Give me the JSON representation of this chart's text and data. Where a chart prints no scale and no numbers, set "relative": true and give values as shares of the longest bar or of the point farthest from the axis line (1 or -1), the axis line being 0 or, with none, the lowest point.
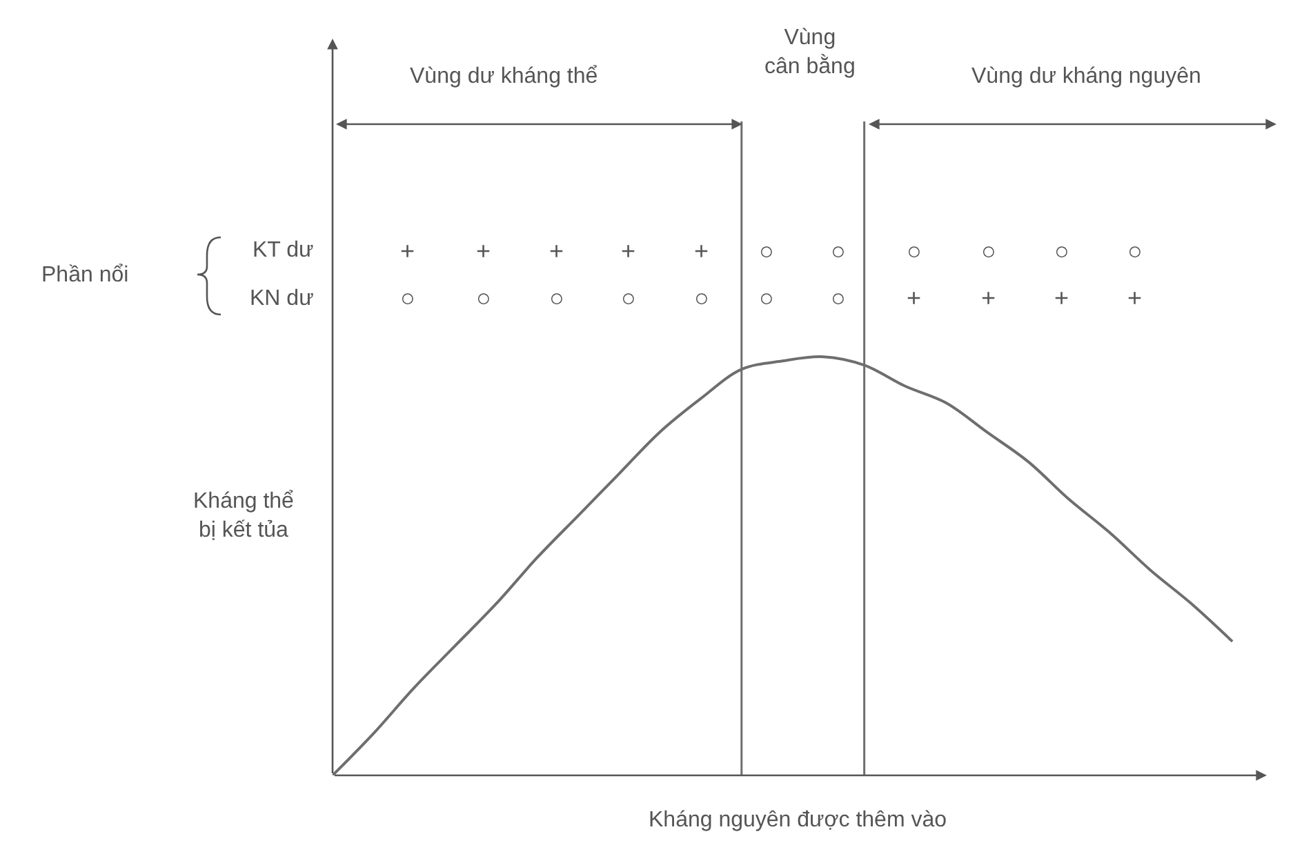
{
  "chart_data": {
    "type": "line",
    "relative": true,
    "xlabel": "Kháng nguyên được thêm vào",
    "ylabel": "Kháng thể\nbị kết tủa",
    "categories": [
      null,
      null,
      null,
      null,
      null,
      null,
      null,
      null,
      null,
      null,
      null,
      null,
      null,
      null,
      null,
      null,
      null,
      null,
      null,
      null,
      null,
      null,
      null
    ],
    "series": [
      {
        "color": "#6e6e6e",
        "values": [
          0,
          0.1,
          0.21,
          0.31,
          0.41,
          0.52,
          0.62,
          0.72,
          0.82,
          0.9,
          0.97,
          0.99,
          1,
          0.98,
          0.93,
          0.89,
          0.82,
          0.75,
          0.66,
          0.58,
          0.49,
          0.41,
          0.32
        ]
      }
    ],
    "annotations": [
      "Vùng dư kháng thể",
      "Vùng\ncân bằng",
      "Vùng dư kháng nguyên",
      "Phần nổi",
      "KT dư",
      "KN dư",
      "+ + + + + ○ ○ ○ ○ ○ ○",
      "○ ○ ○ ○ ○ ○ ○ + + + +"
    ],
    "marker": "none",
    "line_style": "solid"
  }
}
